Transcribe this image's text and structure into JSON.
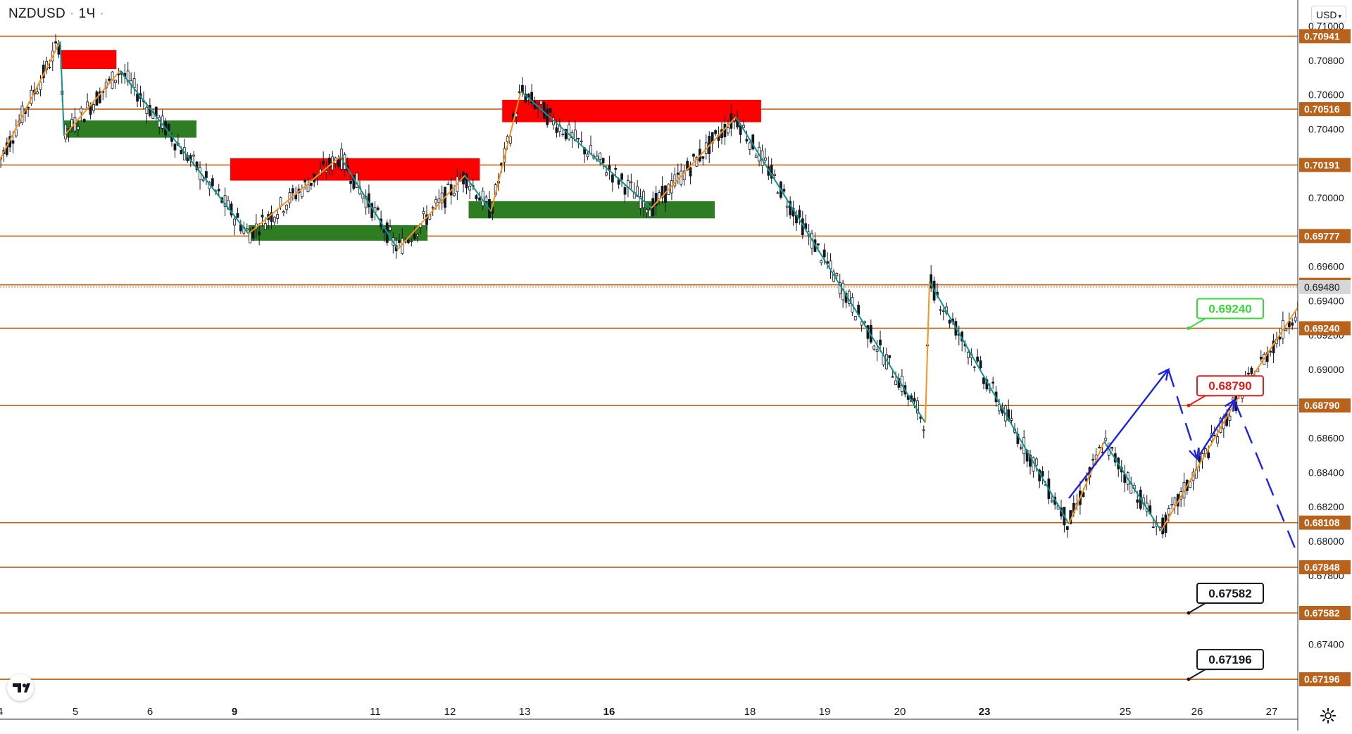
{
  "header": {
    "symbol": "NZDUSD",
    "interval": "1Ч"
  },
  "currency": {
    "label": "USD"
  },
  "icons": {
    "logo": "tradingview-logo-icon",
    "settings": "gear-icon",
    "currency_caret": "chevron-down-icon"
  },
  "colors": {
    "level_line": "#c0661a",
    "level_label_bg": "#b8621b",
    "resistance_zone": "#ff0000",
    "support_zone": "#2e7d22",
    "zigzag_up": "#f7931e",
    "zigzag_down": "#14948a",
    "forecast": "#1a22e6",
    "current_price_bg": "#d6d6d6",
    "candle": "#131722"
  },
  "chart_data": {
    "type": "candlestick",
    "title": "",
    "xlabel": "",
    "ylabel": "",
    "ylim": [
      0.67,
      0.71
    ],
    "x_ticks": [
      "4",
      "5",
      "6",
      "9",
      "11",
      "12",
      "13",
      "16",
      "18",
      "19",
      "20",
      "23",
      "25",
      "26",
      "27"
    ],
    "x_ticks_bold": [
      "9",
      "16",
      "23"
    ],
    "y_ticks": [
      "0.71000",
      "0.70800",
      "0.70600",
      "0.70400",
      "0.70000",
      "0.69600",
      "0.69400",
      "0.69200",
      "0.69000",
      "0.68600",
      "0.68400",
      "0.68200",
      "0.68000",
      "0.67800",
      "0.67400"
    ],
    "levels": [
      "0.70941",
      "0.70516",
      "0.70191",
      "0.69777",
      "0.69493",
      "0.69240",
      "0.68790",
      "0.68108",
      "0.67848",
      "0.67582",
      "0.67196"
    ],
    "current_price": "0.69480",
    "targets": [
      {
        "label": "0.69240",
        "price": 0.6924,
        "style": "hit"
      },
      {
        "label": "0.68790",
        "price": 0.6879,
        "style": "stop"
      },
      {
        "label": "0.67582",
        "price": 0.67582,
        "style": "target"
      },
      {
        "label": "0.67196",
        "price": 0.67196,
        "style": "target"
      }
    ],
    "zones": [
      {
        "kind": "resistance",
        "x0": 0.8,
        "x1": 1.55,
        "y0": 0.7075,
        "y1": 0.7086
      },
      {
        "kind": "support",
        "x0": 0.85,
        "x1": 2.55,
        "y0": 0.7035,
        "y1": 0.7045
      },
      {
        "kind": "resistance",
        "x0": 2.95,
        "x1": 5.4,
        "y0": 0.701,
        "y1": 0.7023
      },
      {
        "kind": "support",
        "x0": 3.1,
        "x1": 4.7,
        "y0": 0.6975,
        "y1": 0.6984
      },
      {
        "kind": "resistance",
        "x0": 5.7,
        "x1": 8.15,
        "y0": 0.7044,
        "y1": 0.7057
      },
      {
        "kind": "support",
        "x0": 5.25,
        "x1": 7.75,
        "y0": 0.6988,
        "y1": 0.6998
      }
    ],
    "zigzag": [
      [
        -0.05,
        0.7018
      ],
      [
        0.8,
        0.7091
      ],
      [
        0.85,
        0.7036
      ],
      [
        1.6,
        0.7074
      ],
      [
        3.1,
        0.6979
      ],
      [
        3.75,
        0.7024
      ],
      [
        4.3,
        0.697
      ],
      [
        5.2,
        0.7013
      ],
      [
        5.55,
        0.6992
      ],
      [
        5.95,
        0.7062
      ],
      [
        7.3,
        0.6994
      ],
      [
        7.9,
        0.7047
      ],
      [
        10.3,
        0.6869
      ],
      [
        10.35,
        0.6951
      ],
      [
        11.6,
        0.681
      ],
      [
        11.85,
        0.6858
      ],
      [
        12.5,
        0.6806
      ],
      [
        13.5,
        0.688
      ],
      [
        14.8,
        0.6966
      ],
      [
        15.25,
        0.6929
      ],
      [
        16.0,
        0.698
      ],
      [
        16.55,
        0.6949
      ]
    ],
    "forecast_path": [
      [
        11.6,
        0.6825
      ],
      [
        12.6,
        0.69
      ],
      [
        13.0,
        0.6848
      ],
      [
        13.5,
        0.6882
      ],
      [
        14.65,
        0.676
      ],
      [
        15.1,
        0.6794
      ],
      [
        15.75,
        0.6722
      ]
    ],
    "invalidation_marker": {
      "x": 15.7,
      "price": 0.6927
    }
  }
}
